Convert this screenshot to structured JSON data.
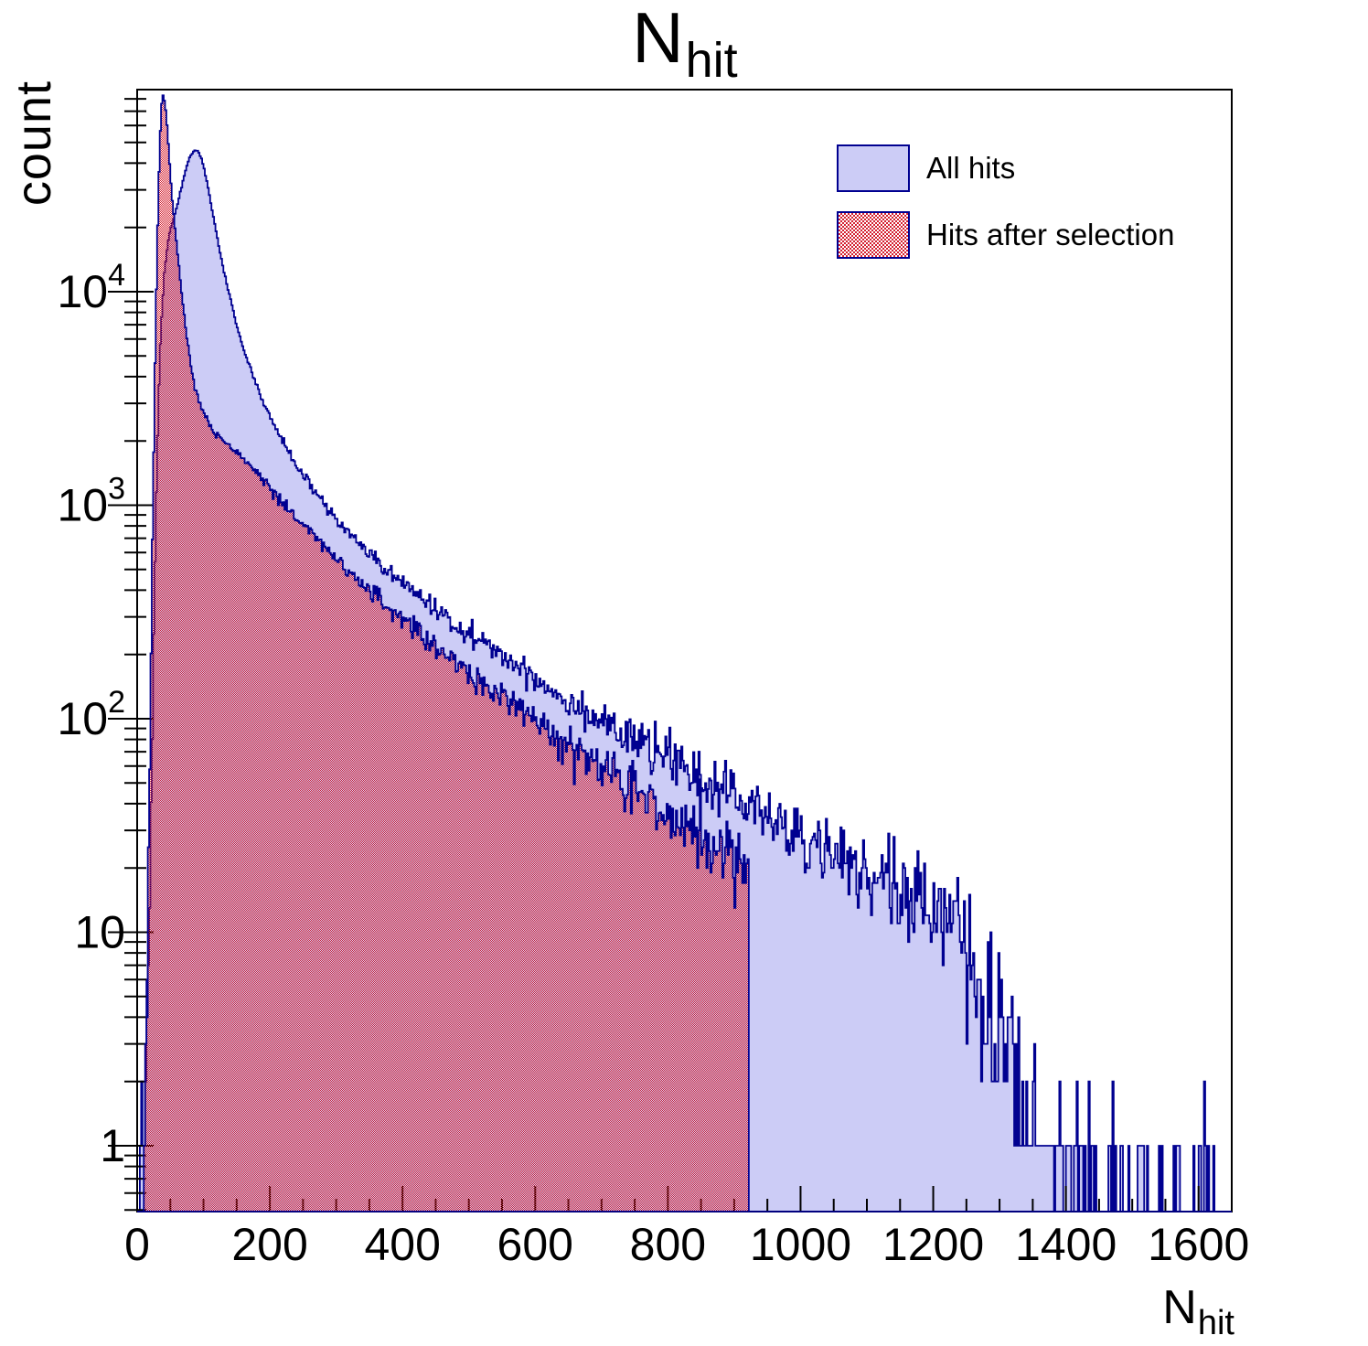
{
  "title": {
    "main": "N",
    "sub": "hit"
  },
  "axes": {
    "x": {
      "title_main": "N",
      "title_sub": "hit",
      "min": 0,
      "max": 1650,
      "major_ticks": [
        0,
        200,
        400,
        600,
        800,
        1000,
        1200,
        1400,
        1600
      ],
      "minor_step": 50
    },
    "y": {
      "title": "count",
      "scale": "log",
      "min": 0.49,
      "max": 88300,
      "major_ticks": [
        1,
        10,
        100,
        1000,
        10000
      ],
      "major_tick_labels": [
        {
          "base": "1",
          "exp": ""
        },
        {
          "base": "10",
          "exp": ""
        },
        {
          "base": "10",
          "exp": "2"
        },
        {
          "base": "10",
          "exp": "3"
        },
        {
          "base": "10",
          "exp": "4"
        }
      ]
    }
  },
  "legend": {
    "items": [
      {
        "label": "All hits",
        "swatch": "solid-blue"
      },
      {
        "label": "Hits after selection",
        "swatch": "red-hatch"
      }
    ]
  },
  "colors": {
    "blue_fill": "#ccccf6",
    "outline": "#000090",
    "hatch_red": "#d41f2f",
    "axis": "#000000",
    "text": "#000000"
  },
  "chart_data": {
    "type": "histogram",
    "xlabel": "N_hit",
    "ylabel": "count",
    "x_range": [
      0,
      1650
    ],
    "y_range_log": [
      0.49,
      88300
    ],
    "bin_width": 2,
    "noise": {
      "seed": 42,
      "amp": 1.0
    },
    "series": [
      {
        "name": "All hits",
        "style": "solid-blue",
        "x_start": 3,
        "x_end": 1650,
        "anchors": [
          [
            3,
            0
          ],
          [
            4,
            1.6
          ],
          [
            8,
            2
          ],
          [
            13,
            2
          ],
          [
            15,
            3
          ],
          [
            17,
            8
          ],
          [
            19,
            20
          ],
          [
            21,
            45
          ],
          [
            23,
            110
          ],
          [
            25,
            240
          ],
          [
            27,
            520
          ],
          [
            29,
            1100
          ],
          [
            31,
            2100
          ],
          [
            33,
            3600
          ],
          [
            35,
            5600
          ],
          [
            38,
            8800
          ],
          [
            41,
            12000
          ],
          [
            44,
            15000
          ],
          [
            47,
            17500
          ],
          [
            50,
            19500
          ],
          [
            54,
            21600
          ],
          [
            58,
            23800
          ],
          [
            62,
            26500
          ],
          [
            66,
            30000
          ],
          [
            70,
            34000
          ],
          [
            74,
            38000
          ],
          [
            78,
            41500
          ],
          [
            82,
            44000
          ],
          [
            85,
            45600
          ],
          [
            88,
            46200
          ],
          [
            91,
            45800
          ],
          [
            94,
            44200
          ],
          [
            97,
            41800
          ],
          [
            100,
            38800
          ],
          [
            103,
            35300
          ],
          [
            106,
            31800
          ],
          [
            109,
            28400
          ],
          [
            112,
            25200
          ],
          [
            116,
            21500
          ],
          [
            120,
            18400
          ],
          [
            124,
            15800
          ],
          [
            128,
            13700
          ],
          [
            133,
            11600
          ],
          [
            138,
            9900
          ],
          [
            144,
            8300
          ],
          [
            150,
            7000
          ],
          [
            157,
            5900
          ],
          [
            164,
            5000
          ],
          [
            172,
            4250
          ],
          [
            180,
            3650
          ],
          [
            190,
            3050
          ],
          [
            200,
            2600
          ],
          [
            212,
            2200
          ],
          [
            224,
            1880
          ],
          [
            236,
            1620
          ],
          [
            250,
            1390
          ],
          [
            265,
            1190
          ],
          [
            280,
            1030
          ],
          [
            300,
            860
          ],
          [
            320,
            730
          ],
          [
            340,
            630
          ],
          [
            360,
            550
          ],
          [
            385,
            470
          ],
          [
            400,
            430
          ],
          [
            440,
            345
          ],
          [
            480,
            280
          ],
          [
            520,
            228
          ],
          [
            560,
            188
          ],
          [
            600,
            155
          ],
          [
            640,
            128
          ],
          [
            680,
            107
          ],
          [
            720,
            90
          ],
          [
            760,
            76
          ],
          [
            800,
            64
          ],
          [
            840,
            55
          ],
          [
            880,
            47
          ],
          [
            920,
            40
          ],
          [
            950,
            35
          ],
          [
            980,
            30
          ],
          [
            1010,
            26
          ],
          [
            1040,
            23
          ],
          [
            1080,
            20
          ],
          [
            1120,
            17
          ],
          [
            1160,
            15
          ],
          [
            1200,
            13.5
          ],
          [
            1240,
            12.5
          ],
          [
            1250,
            8
          ],
          [
            1262,
            5.5
          ],
          [
            1276,
            4
          ],
          [
            1292,
            3
          ],
          [
            1310,
            2.2
          ],
          [
            1330,
            1.6
          ],
          [
            1355,
            1.2
          ],
          [
            1385,
            0.85
          ],
          [
            1420,
            0.6
          ],
          [
            1460,
            0.4
          ],
          [
            1510,
            0.28
          ],
          [
            1570,
            0.22
          ],
          [
            1650,
            0.18
          ]
        ]
      },
      {
        "name": "Hits after selection",
        "style": "red-hatch",
        "x_start": 7,
        "x_end": 922,
        "anchors": [
          [
            7,
            0
          ],
          [
            8,
            0.4
          ],
          [
            10,
            0.8
          ],
          [
            12,
            1.5
          ],
          [
            14,
            4
          ],
          [
            16,
            11
          ],
          [
            18,
            40
          ],
          [
            20,
            130
          ],
          [
            22,
            400
          ],
          [
            24,
            1100
          ],
          [
            26,
            2900
          ],
          [
            28,
            7000
          ],
          [
            30,
            15000
          ],
          [
            32,
            28000
          ],
          [
            34,
            47000
          ],
          [
            36,
            68000
          ],
          [
            38,
            85000
          ],
          [
            40,
            82000
          ],
          [
            42,
            76000
          ],
          [
            44,
            66000
          ],
          [
            46,
            55000
          ],
          [
            48,
            44000
          ],
          [
            50,
            35500
          ],
          [
            53,
            27000
          ],
          [
            56,
            21500
          ],
          [
            59,
            17300
          ],
          [
            62,
            14000
          ],
          [
            65,
            11400
          ],
          [
            68,
            9300
          ],
          [
            71,
            7700
          ],
          [
            74,
            6400
          ],
          [
            77,
            5400
          ],
          [
            80,
            4700
          ],
          [
            84,
            4000
          ],
          [
            88,
            3500
          ],
          [
            92,
            3150
          ],
          [
            96,
            2900
          ],
          [
            100,
            2700
          ],
          [
            108,
            2400
          ],
          [
            116,
            2200
          ],
          [
            126,
            2050
          ],
          [
            136,
            1920
          ],
          [
            148,
            1800
          ],
          [
            160,
            1650
          ],
          [
            175,
            1470
          ],
          [
            190,
            1300
          ],
          [
            205,
            1150
          ],
          [
            220,
            1020
          ],
          [
            240,
            880
          ],
          [
            260,
            760
          ],
          [
            280,
            660
          ],
          [
            300,
            565
          ],
          [
            320,
            480
          ],
          [
            350,
            400
          ],
          [
            380,
            330
          ],
          [
            410,
            275
          ],
          [
            440,
            230
          ],
          [
            470,
            195
          ],
          [
            500,
            165
          ],
          [
            530,
            140
          ],
          [
            560,
            120
          ],
          [
            590,
            103
          ],
          [
            620,
            88
          ],
          [
            650,
            75
          ],
          [
            680,
            64
          ],
          [
            710,
            55
          ],
          [
            740,
            48
          ],
          [
            770,
            41
          ],
          [
            800,
            35
          ],
          [
            830,
            30
          ],
          [
            860,
            26
          ],
          [
            890,
            23
          ],
          [
            910,
            21
          ],
          [
            922,
            20
          ]
        ]
      }
    ]
  }
}
